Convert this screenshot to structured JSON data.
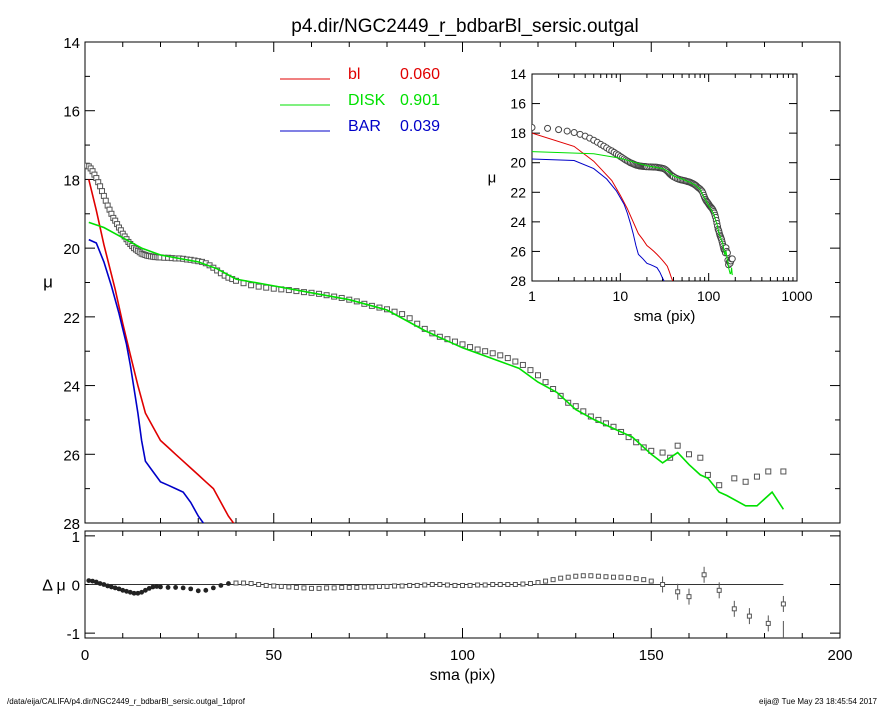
{
  "chart_data": [
    {
      "panel": "main",
      "type": "line",
      "title": "p4.dir/NGC2449_r_bdbarBl_sersic.outgal",
      "xlabel": "sma (pix)",
      "ylabel": "μ",
      "xlim": [
        0,
        200
      ],
      "ylim": [
        28,
        14
      ],
      "y_inverted": true,
      "xticks": [
        0,
        50,
        100,
        150,
        200
      ],
      "yticks": [
        14,
        16,
        18,
        20,
        22,
        24,
        26,
        28
      ],
      "legend_position": "top-center",
      "legend": [
        {
          "name": "bl",
          "value": "0.060",
          "color": "#e00000"
        },
        {
          "name": "DISK",
          "value": "0.901",
          "color": "#00e000"
        },
        {
          "name": "BAR",
          "value": "0.039",
          "color": "#0000c8"
        }
      ],
      "series": [
        {
          "name": "bl",
          "color": "#e00000",
          "x": [
            1,
            3,
            5,
            8,
            10,
            12,
            14,
            16,
            18,
            20,
            22,
            24,
            26,
            28,
            30,
            32,
            34,
            36,
            38,
            40
          ],
          "y": [
            18.0,
            18.9,
            19.9,
            21.2,
            22.2,
            23.1,
            24.0,
            24.8,
            25.2,
            25.6,
            25.8,
            26.0,
            26.2,
            26.4,
            26.6,
            26.8,
            27.0,
            27.4,
            27.8,
            28.1
          ]
        },
        {
          "name": "DISK",
          "color": "#00e000",
          "x": [
            1,
            5,
            10,
            15,
            20,
            25,
            30,
            35,
            40,
            50,
            60,
            70,
            80,
            90,
            100,
            110,
            115,
            120,
            125,
            130,
            135,
            140,
            145,
            150,
            153,
            155,
            157,
            160,
            163,
            165,
            168,
            170,
            175,
            178,
            182,
            185
          ],
          "y": [
            19.25,
            19.4,
            19.7,
            20.0,
            20.2,
            20.3,
            20.4,
            20.6,
            20.9,
            21.1,
            21.3,
            21.5,
            21.8,
            22.4,
            22.9,
            23.3,
            23.5,
            23.9,
            24.2,
            24.7,
            25.0,
            25.25,
            25.5,
            26.0,
            26.25,
            26.1,
            25.95,
            26.3,
            26.6,
            26.7,
            27.1,
            27.2,
            27.5,
            27.5,
            27.1,
            27.6
          ]
        },
        {
          "name": "BAR",
          "color": "#0000c8",
          "x": [
            1,
            3,
            5,
            7,
            9,
            11,
            12,
            13,
            14,
            15,
            16,
            18,
            20,
            22,
            24,
            26,
            28,
            30,
            32
          ],
          "y": [
            19.75,
            19.85,
            20.4,
            21.1,
            21.9,
            22.8,
            23.4,
            24.1,
            24.8,
            25.6,
            26.2,
            26.5,
            26.8,
            26.9,
            27.0,
            27.1,
            27.4,
            27.8,
            28.1
          ]
        }
      ],
      "points": {
        "name": "data",
        "x": [
          0.5,
          1,
          1.5,
          2,
          2.5,
          3,
          3.5,
          4,
          4.5,
          5,
          5.5,
          6,
          6.5,
          7,
          7.5,
          8,
          8.5,
          9,
          9.5,
          10,
          10.5,
          11,
          11.5,
          12,
          12.5,
          13,
          13.5,
          14,
          14.5,
          15,
          15.5,
          16,
          16.5,
          17,
          17.5,
          18,
          18.5,
          19,
          19.5,
          20,
          21,
          22,
          23,
          24,
          25,
          26,
          27,
          28,
          29,
          30,
          31,
          32,
          33,
          34,
          35,
          36,
          37,
          38,
          39,
          40,
          42,
          44,
          46,
          48,
          50,
          52,
          54,
          56,
          58,
          60,
          62,
          64,
          66,
          68,
          70,
          72,
          74,
          76,
          78,
          80,
          82,
          84,
          86,
          88,
          90,
          92,
          94,
          96,
          98,
          100,
          102,
          104,
          106,
          108,
          110,
          112,
          114,
          116,
          118,
          120,
          122,
          124,
          126,
          128,
          130,
          132,
          134,
          136,
          138,
          140,
          142,
          144,
          146,
          148,
          150,
          153,
          155,
          157,
          160,
          163,
          165,
          168,
          172,
          175,
          178,
          181,
          185
        ],
        "y": [
          17.6,
          17.62,
          17.68,
          17.76,
          17.86,
          17.96,
          18.08,
          18.2,
          18.34,
          18.48,
          18.62,
          18.76,
          18.88,
          19.0,
          19.12,
          19.2,
          19.3,
          19.4,
          19.48,
          19.58,
          19.66,
          19.74,
          19.82,
          19.88,
          19.94,
          20.0,
          20.04,
          20.08,
          20.12,
          20.16,
          20.18,
          20.2,
          20.22,
          20.23,
          20.24,
          20.25,
          20.26,
          20.26,
          20.27,
          20.27,
          20.28,
          20.28,
          20.29,
          20.3,
          20.3,
          20.31,
          20.33,
          20.34,
          20.36,
          20.38,
          20.4,
          20.44,
          20.5,
          20.57,
          20.65,
          20.73,
          20.8,
          20.86,
          20.9,
          20.95,
          21.02,
          21.08,
          21.12,
          21.15,
          21.18,
          21.2,
          21.22,
          21.25,
          21.28,
          21.3,
          21.33,
          21.37,
          21.41,
          21.45,
          21.5,
          21.55,
          21.62,
          21.68,
          21.73,
          21.78,
          21.85,
          21.92,
          22.04,
          22.2,
          22.35,
          22.48,
          22.58,
          22.65,
          22.72,
          22.8,
          22.88,
          22.95,
          23.0,
          23.06,
          23.12,
          23.2,
          23.3,
          23.4,
          23.55,
          23.7,
          23.9,
          24.1,
          24.3,
          24.5,
          24.6,
          24.75,
          24.9,
          25.0,
          25.1,
          25.2,
          25.35,
          25.5,
          25.65,
          25.8,
          25.9,
          25.95,
          26.1,
          25.75,
          26.0,
          26.1,
          26.6,
          26.9,
          26.7,
          26.8,
          26.65,
          26.5,
          26.5
        ]
      }
    },
    {
      "panel": "inset",
      "type": "line",
      "xlabel": "sma (pix)",
      "ylabel": "μ",
      "xscale": "log",
      "xlim": [
        1,
        1000
      ],
      "ylim": [
        28,
        14
      ],
      "y_inverted": true,
      "xticks": [
        1,
        10,
        100,
        1000
      ],
      "yticks": [
        14,
        16,
        18,
        20,
        22,
        24,
        26,
        28
      ]
    },
    {
      "panel": "residual",
      "type": "scatter",
      "xlabel": "sma (pix)",
      "ylabel": "Δ μ",
      "xlim": [
        0,
        200
      ],
      "ylim": [
        -1.1,
        1.1
      ],
      "yticks": [
        1,
        0,
        -1
      ],
      "xticks": [
        0,
        50,
        100,
        150,
        200
      ],
      "x": [
        1,
        2,
        3,
        4,
        5,
        6,
        7,
        8,
        9,
        10,
        11,
        12,
        13,
        14,
        15,
        16,
        17,
        18,
        19,
        20,
        22,
        24,
        26,
        28,
        30,
        32,
        34,
        36,
        38,
        40,
        42,
        44,
        46,
        48,
        50,
        52,
        54,
        56,
        58,
        60,
        62,
        64,
        66,
        68,
        70,
        72,
        74,
        76,
        78,
        80,
        82,
        84,
        86,
        88,
        90,
        92,
        94,
        96,
        98,
        100,
        102,
        104,
        106,
        108,
        110,
        112,
        114,
        116,
        118,
        120,
        122,
        124,
        126,
        128,
        130,
        132,
        134,
        136,
        138,
        140,
        142,
        144,
        146,
        148,
        150,
        153,
        157,
        160,
        164,
        168,
        172,
        176,
        181,
        185
      ],
      "y": [
        0.08,
        0.07,
        0.05,
        0.02,
        0.0,
        -0.03,
        -0.05,
        -0.07,
        -0.09,
        -0.12,
        -0.14,
        -0.16,
        -0.18,
        -0.18,
        -0.16,
        -0.12,
        -0.08,
        -0.05,
        -0.04,
        -0.05,
        -0.06,
        -0.06,
        -0.07,
        -0.09,
        -0.13,
        -0.12,
        -0.07,
        -0.02,
        0.02,
        0.03,
        0.03,
        0.02,
        0.0,
        -0.02,
        -0.03,
        -0.04,
        -0.05,
        -0.06,
        -0.07,
        -0.08,
        -0.08,
        -0.07,
        -0.07,
        -0.06,
        -0.06,
        -0.06,
        -0.05,
        -0.05,
        -0.04,
        -0.04,
        -0.03,
        -0.03,
        -0.02,
        -0.02,
        -0.01,
        0.0,
        0.0,
        -0.01,
        -0.02,
        -0.02,
        -0.02,
        -0.01,
        -0.01,
        0.0,
        0.0,
        0.0,
        0.0,
        0.01,
        0.02,
        0.04,
        0.07,
        0.1,
        0.13,
        0.15,
        0.17,
        0.18,
        0.18,
        0.17,
        0.16,
        0.15,
        0.15,
        0.14,
        0.12,
        0.1,
        0.07,
        0.0,
        -0.15,
        -0.25,
        0.2,
        -0.12,
        -0.5,
        -0.65,
        -0.8,
        -0.4
      ],
      "zero_line": 0
    }
  ],
  "footer": {
    "left": "/data/eija/CALIFA/p4.dir/NGC2449_r_bdbarBl_sersic.outgal_1dprof",
    "right": "eija@  Tue May 23 18:45:54 2017"
  }
}
